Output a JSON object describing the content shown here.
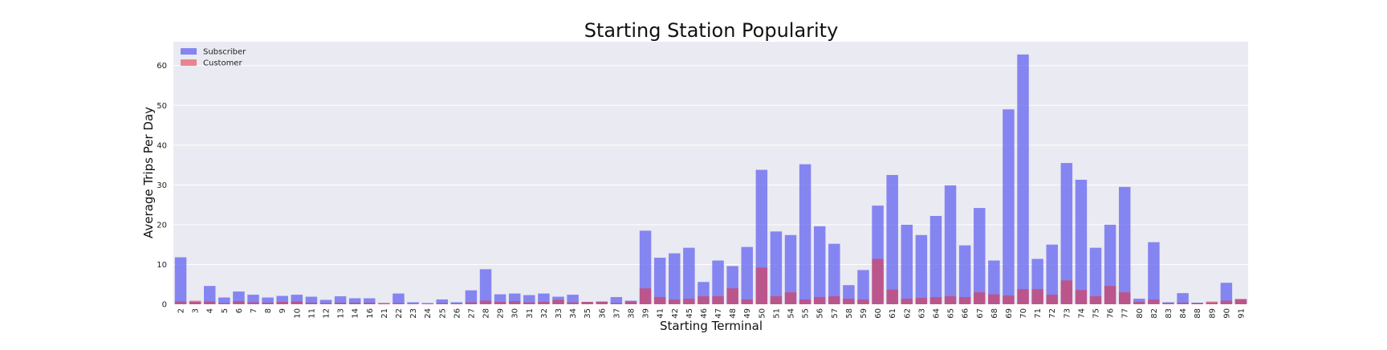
{
  "chart_data": {
    "type": "bar",
    "title": "Starting Station Popularity",
    "xlabel": "Starting Terminal",
    "ylabel": "Average Trips Per Day",
    "ylim": [
      0,
      66
    ],
    "yticks": [
      0,
      10,
      20,
      30,
      40,
      50,
      60
    ],
    "grid": true,
    "legend_position": "top-left",
    "stacking": "overlaid",
    "categories": [
      "2",
      "3",
      "4",
      "5",
      "6",
      "7",
      "8",
      "9",
      "10",
      "11",
      "12",
      "13",
      "14",
      "16",
      "21",
      "22",
      "23",
      "24",
      "25",
      "26",
      "27",
      "28",
      "29",
      "30",
      "31",
      "32",
      "33",
      "34",
      "35",
      "36",
      "37",
      "38",
      "39",
      "41",
      "42",
      "45",
      "46",
      "47",
      "48",
      "49",
      "50",
      "51",
      "54",
      "55",
      "56",
      "57",
      "58",
      "59",
      "60",
      "61",
      "62",
      "63",
      "64",
      "65",
      "66",
      "67",
      "68",
      "69",
      "70",
      "71",
      "72",
      "73",
      "74",
      "75",
      "76",
      "77",
      "80",
      "82",
      "83",
      "84",
      "88",
      "89",
      "90",
      "91"
    ],
    "series": [
      {
        "name": "Subscriber",
        "color": "#6c6cf0",
        "opacity": 0.8,
        "values": [
          11.8,
          0.6,
          4.6,
          1.7,
          3.2,
          2.4,
          1.7,
          2.1,
          2.4,
          1.9,
          1.1,
          2.0,
          1.5,
          1.5,
          0.3,
          2.7,
          0.5,
          0.3,
          1.2,
          0.5,
          3.5,
          8.8,
          2.5,
          2.7,
          2.3,
          2.7,
          1.9,
          2.4,
          0.6,
          0.7,
          1.8,
          0.9,
          18.5,
          11.7,
          12.8,
          14.2,
          5.6,
          11.0,
          9.6,
          14.4,
          33.8,
          18.3,
          17.4,
          35.2,
          19.6,
          15.2,
          4.8,
          8.6,
          24.8,
          32.5,
          20.0,
          17.4,
          22.2,
          29.9,
          14.8,
          24.2,
          11.0,
          49.0,
          62.8,
          11.4,
          15.0,
          35.5,
          31.3,
          14.2,
          20.0,
          29.5,
          1.4,
          15.6,
          0.5,
          2.8,
          0.4,
          0.4,
          5.4,
          1.3
        ]
      },
      {
        "name": "Customer",
        "color": "#e8303a",
        "opacity": 0.55,
        "values": [
          0.7,
          0.9,
          0.7,
          0.3,
          0.8,
          0.5,
          0.4,
          0.6,
          0.7,
          0.4,
          0.3,
          0.4,
          0.4,
          0.4,
          0.3,
          0.3,
          0.1,
          0.1,
          0.3,
          0.2,
          0.5,
          0.9,
          0.6,
          0.8,
          0.5,
          0.6,
          1.1,
          0.5,
          0.6,
          0.6,
          0.3,
          0.7,
          4.0,
          1.8,
          1.2,
          1.4,
          2.0,
          2.0,
          4.0,
          1.2,
          9.2,
          2.0,
          3.0,
          1.2,
          1.8,
          2.0,
          1.4,
          1.2,
          11.4,
          3.7,
          1.4,
          1.6,
          1.8,
          2.0,
          1.8,
          3.0,
          2.5,
          2.2,
          3.8,
          3.8,
          2.4,
          6.0,
          3.6,
          2.0,
          4.6,
          3.0,
          0.6,
          1.2,
          0.3,
          0.4,
          0.3,
          0.7,
          0.9,
          1.3
        ]
      }
    ]
  }
}
